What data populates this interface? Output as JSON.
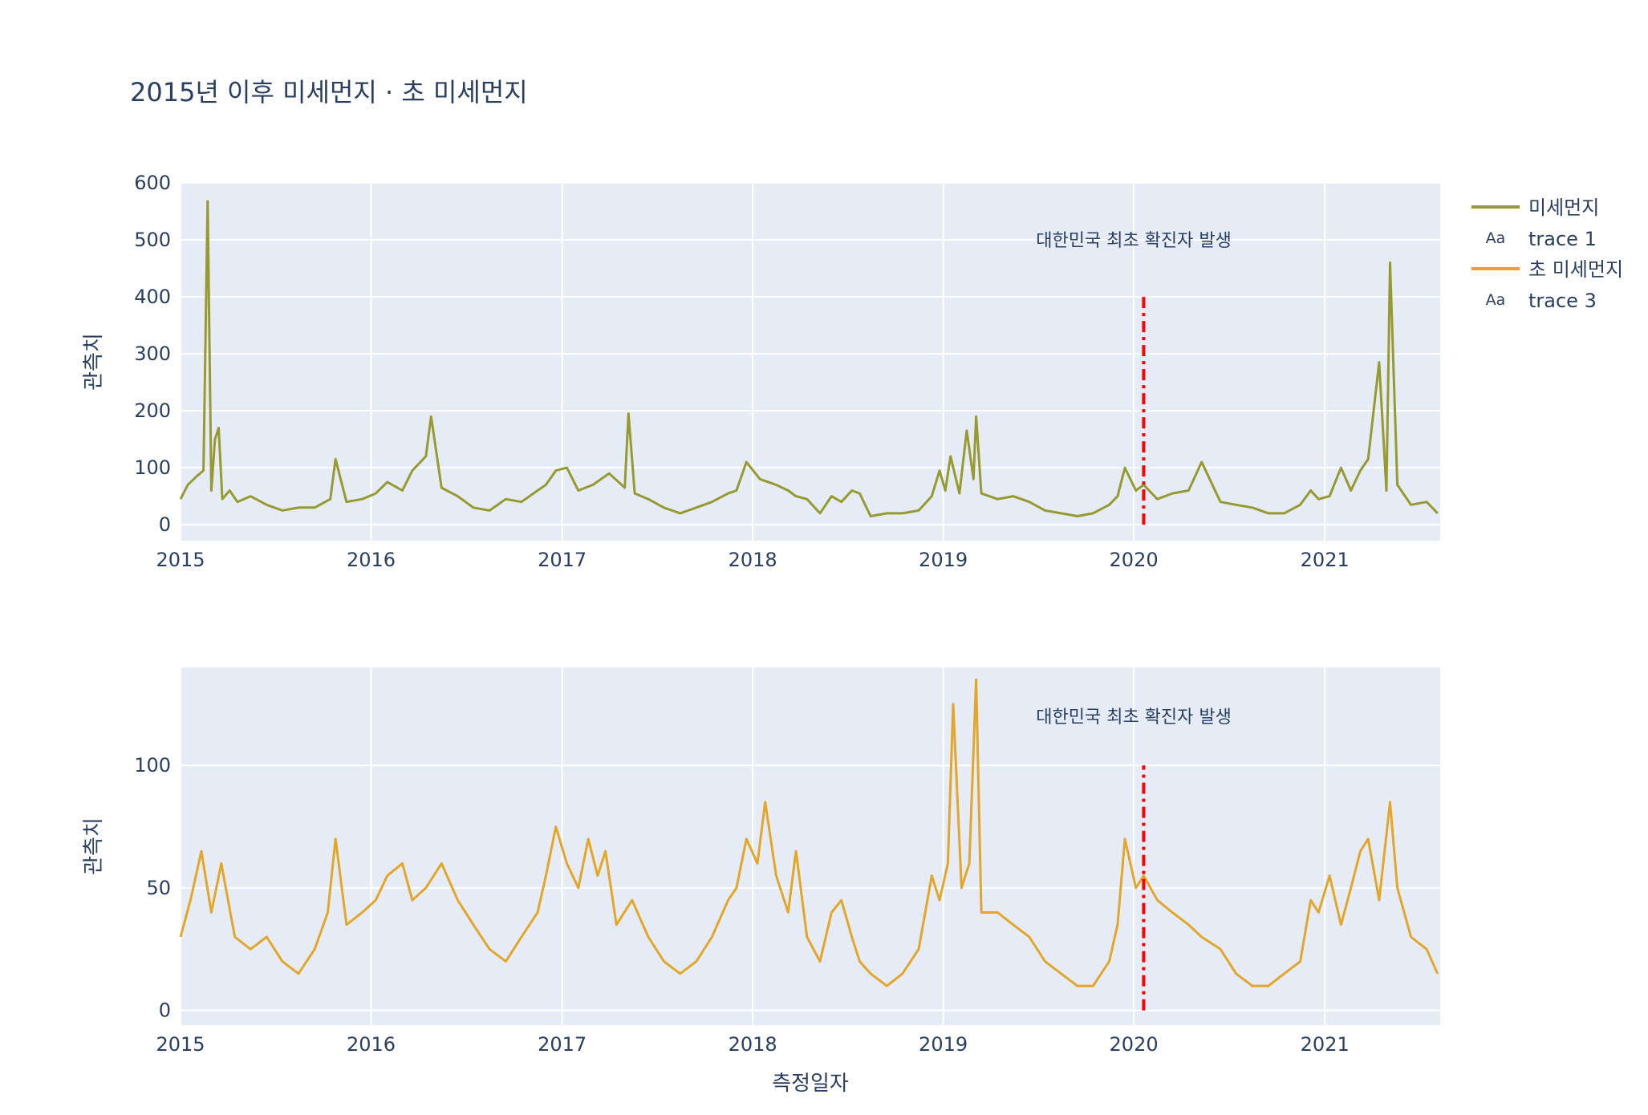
{
  "title": "2015년 이후 미세먼지 · 초 미세먼지",
  "xlabel": "측정일자",
  "annotation": "대한민국 최초 확진자 발생",
  "legend": [
    {
      "label": "미세먼지",
      "kind": "line",
      "color": "#969a2f"
    },
    {
      "label": "trace 1",
      "kind": "text",
      "glyph": "Aa"
    },
    {
      "label": "초 미세먼지",
      "kind": "line",
      "color": "#e3a628"
    },
    {
      "label": "trace 3",
      "kind": "text",
      "glyph": "Aa"
    }
  ],
  "chart_data": [
    {
      "type": "line",
      "ylabel": "관측치",
      "xlim": [
        "2015-01-01",
        "2021-08-10"
      ],
      "ylim": [
        -28,
        600
      ],
      "xticks": [
        "2015",
        "2016",
        "2017",
        "2018",
        "2019",
        "2020",
        "2021"
      ],
      "yticks": [
        0,
        100,
        200,
        300,
        400,
        500,
        600
      ],
      "grid": true,
      "series": [
        {
          "name": "미세먼지",
          "color": "#969a2f",
          "x": [
            "2015-01-01",
            "2015-01-15",
            "2015-02-01",
            "2015-02-14",
            "2015-02-22",
            "2015-03-01",
            "2015-03-08",
            "2015-03-15",
            "2015-03-22",
            "2015-04-05",
            "2015-04-20",
            "2015-05-15",
            "2015-06-15",
            "2015-07-15",
            "2015-08-15",
            "2015-09-15",
            "2015-10-15",
            "2015-10-25",
            "2015-11-15",
            "2015-12-15",
            "2016-01-10",
            "2016-02-01",
            "2016-03-01",
            "2016-03-20",
            "2016-04-15",
            "2016-04-25",
            "2016-05-15",
            "2016-06-15",
            "2016-07-15",
            "2016-08-15",
            "2016-09-15",
            "2016-10-15",
            "2016-11-15",
            "2016-12-01",
            "2016-12-20",
            "2017-01-10",
            "2017-02-01",
            "2017-03-01",
            "2017-04-01",
            "2017-05-01",
            "2017-05-08",
            "2017-05-20",
            "2017-06-15",
            "2017-07-15",
            "2017-08-15",
            "2017-09-15",
            "2017-10-15",
            "2017-11-15",
            "2017-12-01",
            "2017-12-20",
            "2018-01-15",
            "2018-02-15",
            "2018-03-10",
            "2018-03-25",
            "2018-04-15",
            "2018-05-10",
            "2018-06-01",
            "2018-06-20",
            "2018-07-10",
            "2018-07-25",
            "2018-08-15",
            "2018-09-15",
            "2018-10-15",
            "2018-11-15",
            "2018-12-10",
            "2018-12-25",
            "2019-01-05",
            "2019-01-15",
            "2019-02-01",
            "2019-02-15",
            "2019-02-28",
            "2019-03-05",
            "2019-03-15",
            "2019-04-15",
            "2019-05-15",
            "2019-06-15",
            "2019-07-15",
            "2019-08-15",
            "2019-09-15",
            "2019-10-15",
            "2019-11-15",
            "2019-12-01",
            "2019-12-15",
            "2020-01-05",
            "2020-01-20",
            "2020-02-15",
            "2020-03-15",
            "2020-04-15",
            "2020-05-10",
            "2020-06-15",
            "2020-07-15",
            "2020-08-15",
            "2020-09-15",
            "2020-10-15",
            "2020-11-15",
            "2020-12-05",
            "2020-12-20",
            "2021-01-10",
            "2021-02-01",
            "2021-02-20",
            "2021-03-10",
            "2021-03-25",
            "2021-04-15",
            "2021-04-29",
            "2021-05-06",
            "2021-05-20",
            "2021-06-15",
            "2021-07-15",
            "2021-08-05"
          ],
          "values": [
            45,
            70,
            85,
            95,
            568,
            60,
            150,
            170,
            45,
            60,
            40,
            50,
            35,
            25,
            30,
            30,
            45,
            115,
            40,
            45,
            55,
            75,
            60,
            95,
            120,
            190,
            65,
            50,
            30,
            25,
            45,
            40,
            60,
            70,
            95,
            100,
            60,
            70,
            90,
            65,
            195,
            55,
            45,
            30,
            20,
            30,
            40,
            55,
            60,
            110,
            80,
            70,
            60,
            50,
            45,
            20,
            50,
            40,
            60,
            55,
            15,
            20,
            20,
            25,
            50,
            95,
            60,
            120,
            55,
            165,
            80,
            190,
            55,
            45,
            50,
            40,
            25,
            20,
            15,
            20,
            35,
            50,
            100,
            60,
            70,
            45,
            55,
            60,
            110,
            40,
            35,
            30,
            20,
            20,
            35,
            60,
            45,
            50,
            100,
            60,
            95,
            115,
            285,
            60,
            460,
            70,
            35,
            40,
            20
          ]
        }
      ],
      "vline": {
        "x": "2020-01-20",
        "y0": 0,
        "y1": 400,
        "color": "#ff0000"
      },
      "annotation_pos": {
        "x": "2020-01-01",
        "y": 500
      }
    },
    {
      "type": "line",
      "ylabel": "관측치",
      "xlim": [
        "2015-01-01",
        "2021-08-10"
      ],
      "ylim": [
        -6,
        140
      ],
      "xticks": [
        "2015",
        "2016",
        "2017",
        "2018",
        "2019",
        "2020",
        "2021"
      ],
      "yticks": [
        0,
        50,
        100
      ],
      "grid": true,
      "series": [
        {
          "name": "초 미세먼지",
          "color": "#e3a628",
          "x": [
            "2015-01-01",
            "2015-01-20",
            "2015-02-10",
            "2015-03-01",
            "2015-03-20",
            "2015-04-15",
            "2015-05-15",
            "2015-06-15",
            "2015-07-15",
            "2015-08-15",
            "2015-09-15",
            "2015-10-10",
            "2015-10-25",
            "2015-11-15",
            "2015-12-15",
            "2016-01-10",
            "2016-02-01",
            "2016-03-01",
            "2016-03-20",
            "2016-04-15",
            "2016-05-15",
            "2016-06-15",
            "2016-07-15",
            "2016-08-15",
            "2016-09-15",
            "2016-10-15",
            "2016-11-15",
            "2016-12-01",
            "2016-12-20",
            "2017-01-10",
            "2017-02-01",
            "2017-02-20",
            "2017-03-10",
            "2017-03-25",
            "2017-04-15",
            "2017-05-15",
            "2017-06-15",
            "2017-07-15",
            "2017-08-15",
            "2017-09-15",
            "2017-10-15",
            "2017-11-15",
            "2017-12-01",
            "2017-12-20",
            "2018-01-10",
            "2018-01-25",
            "2018-02-15",
            "2018-03-10",
            "2018-03-25",
            "2018-04-15",
            "2018-05-10",
            "2018-06-01",
            "2018-06-20",
            "2018-07-10",
            "2018-07-25",
            "2018-08-15",
            "2018-09-15",
            "2018-10-15",
            "2018-11-15",
            "2018-12-10",
            "2018-12-25",
            "2019-01-10",
            "2019-01-20",
            "2019-02-05",
            "2019-02-20",
            "2019-03-05",
            "2019-03-15",
            "2019-04-15",
            "2019-05-15",
            "2019-06-15",
            "2019-07-15",
            "2019-08-15",
            "2019-09-15",
            "2019-10-15",
            "2019-11-15",
            "2019-12-01",
            "2019-12-15",
            "2020-01-05",
            "2020-01-20",
            "2020-02-15",
            "2020-03-15",
            "2020-04-15",
            "2020-05-10",
            "2020-06-15",
            "2020-07-15",
            "2020-08-15",
            "2020-09-15",
            "2020-10-15",
            "2020-11-15",
            "2020-12-05",
            "2020-12-20",
            "2021-01-10",
            "2021-02-01",
            "2021-02-20",
            "2021-03-10",
            "2021-03-25",
            "2021-04-15",
            "2021-05-06",
            "2021-05-20",
            "2021-06-15",
            "2021-07-15",
            "2021-08-05"
          ],
          "values": [
            30,
            45,
            65,
            40,
            60,
            30,
            25,
            30,
            20,
            15,
            25,
            40,
            70,
            35,
            40,
            45,
            55,
            60,
            45,
            50,
            60,
            45,
            35,
            25,
            20,
            30,
            40,
            55,
            75,
            60,
            50,
            70,
            55,
            65,
            35,
            45,
            30,
            20,
            15,
            20,
            30,
            45,
            50,
            70,
            60,
            85,
            55,
            40,
            65,
            30,
            20,
            40,
            45,
            30,
            20,
            15,
            10,
            15,
            25,
            55,
            45,
            60,
            125,
            50,
            60,
            135,
            40,
            40,
            35,
            30,
            20,
            15,
            10,
            10,
            20,
            35,
            70,
            50,
            55,
            45,
            40,
            35,
            30,
            25,
            15,
            10,
            10,
            15,
            20,
            45,
            40,
            55,
            35,
            50,
            65,
            70,
            45,
            85,
            50,
            30,
            25,
            15
          ]
        }
      ],
      "vline": {
        "x": "2020-01-20",
        "y0": 0,
        "y1": 100,
        "color": "#ff0000"
      },
      "annotation_pos": {
        "x": "2020-01-01",
        "y": 120
      }
    }
  ]
}
